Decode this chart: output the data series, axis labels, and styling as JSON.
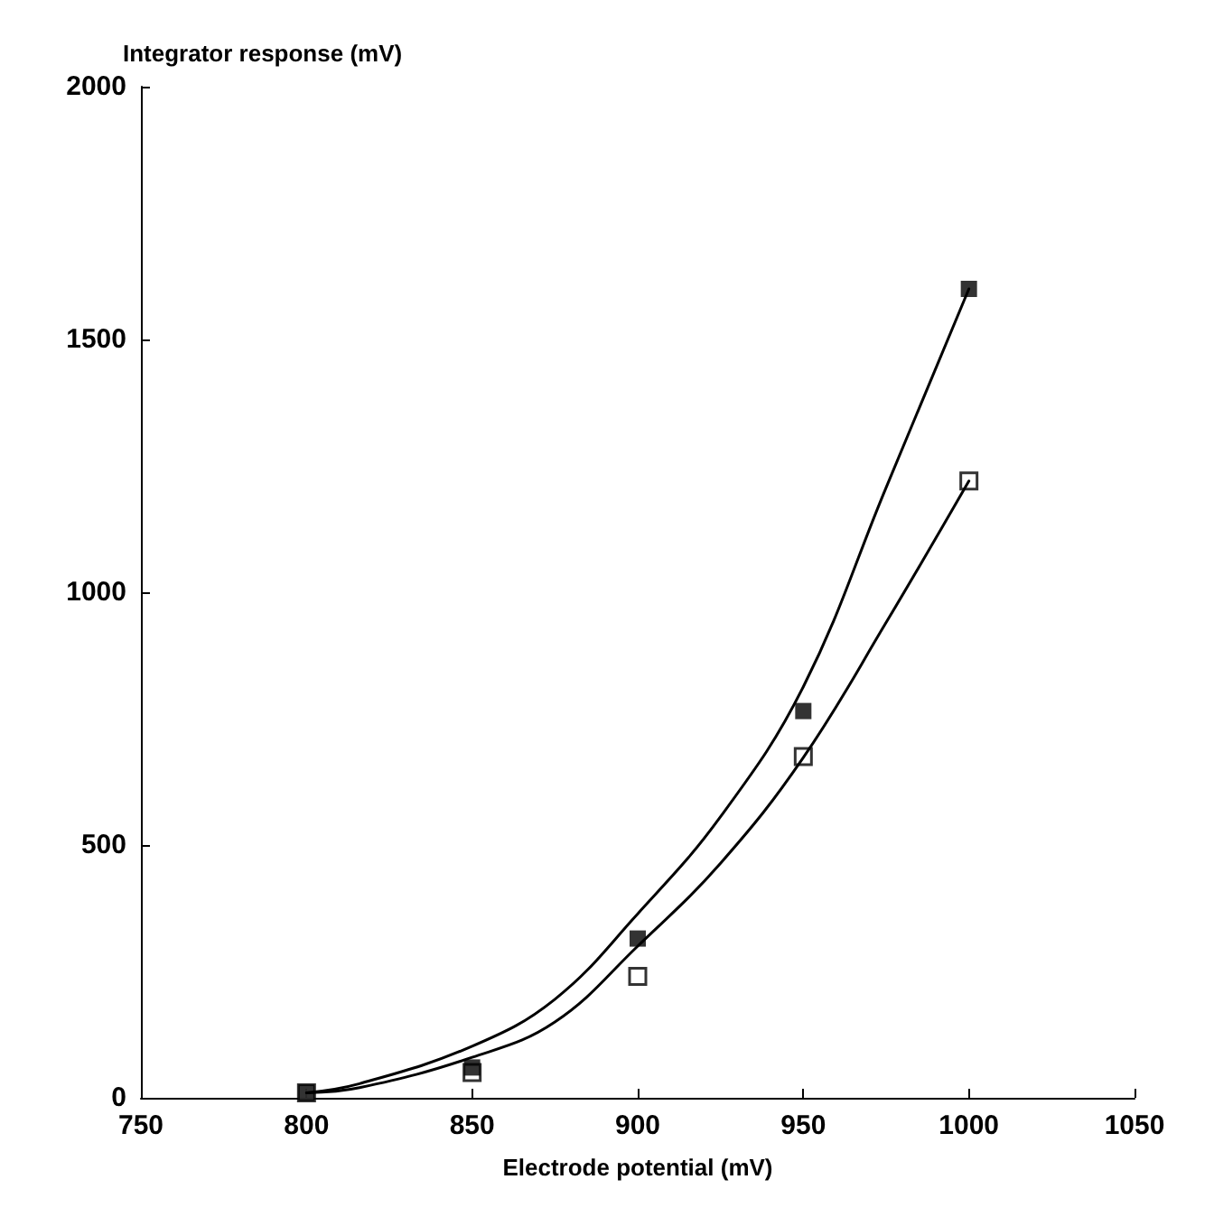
{
  "chart_data": {
    "type": "scatter",
    "xlabel": "Electrode potential (mV)",
    "ylabel": "Integrator response (mV)",
    "xlim": [
      750,
      1050
    ],
    "xticks": [
      750,
      800,
      850,
      900,
      950,
      1000,
      1050
    ],
    "ylim": [
      0,
      2000
    ],
    "yticks": [
      0,
      500,
      1000,
      1500,
      2000
    ],
    "grid": false,
    "series": [
      {
        "marker": "square",
        "color": "#000000",
        "x": [
          800,
          850,
          900,
          950,
          1000
        ],
        "values": [
          10,
          60,
          315,
          765,
          1600
        ]
      },
      {
        "marker": "square",
        "color": "#000000",
        "x": [
          800,
          850,
          900,
          950,
          1000
        ],
        "values": [
          10,
          50,
          240,
          675,
          1220
        ]
      },
      {
        "type": "line",
        "marker": "none",
        "line_style": "solid",
        "color": "#000000",
        "x": [
          800,
          816,
          850,
          875,
          900,
          925,
          950,
          975,
          1000
        ],
        "values": [
          10,
          28,
          102,
          195,
          364,
          556,
          813,
          1207,
          1600
        ]
      },
      {
        "type": "line",
        "marker": "none",
        "line_style": "solid",
        "color": "#000000",
        "x": [
          800,
          816,
          850,
          875,
          900,
          925,
          950,
          975,
          1000
        ],
        "values": [
          10,
          20,
          80,
          150,
          300,
          464,
          673,
          940,
          1220
        ]
      }
    ]
  }
}
